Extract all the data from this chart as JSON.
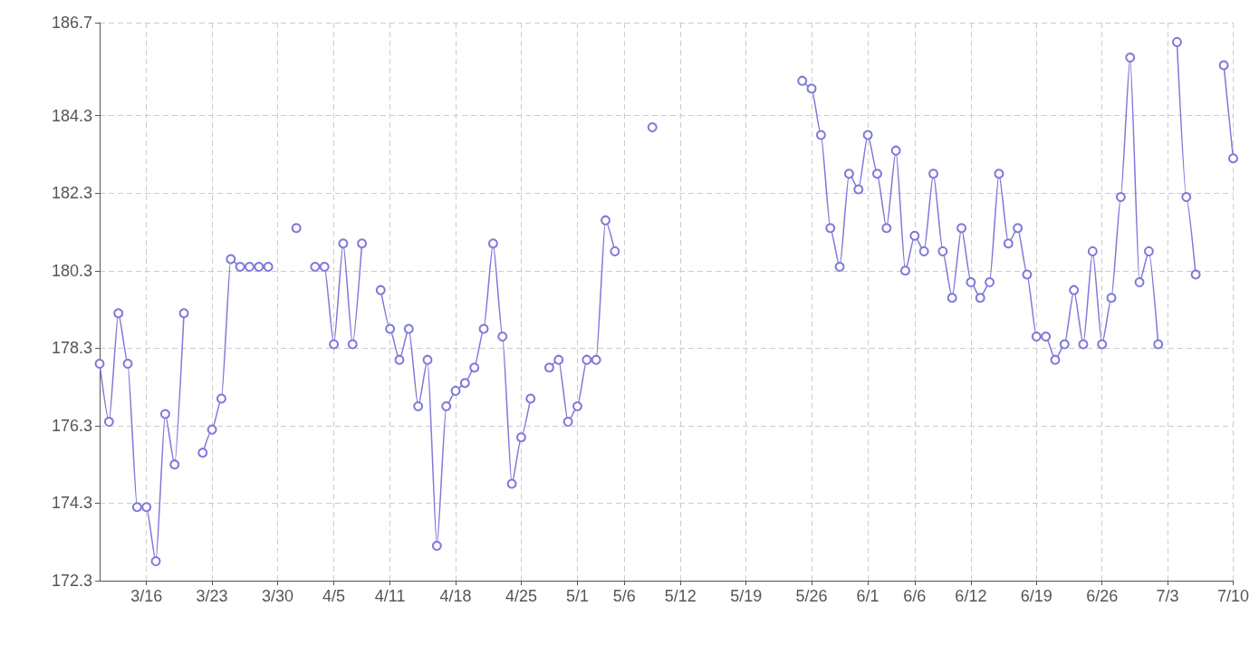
{
  "chart_data": {
    "type": "line",
    "color": "#7e78d8",
    "marker": "circle",
    "grid": true,
    "x": [
      "--03-11",
      "--03-12",
      "--03-13",
      "--03-14",
      "--03-15",
      "--03-16",
      "--03-17",
      "--03-18",
      "--03-19",
      "--03-20",
      "--03-21",
      "--03-22",
      "--03-23",
      "--03-24",
      "--03-25",
      "--03-26",
      "--03-27",
      "--03-28",
      "--03-29",
      "--03-30",
      "--04-01",
      "--04-02",
      "--04-03",
      "--04-04",
      "--04-05",
      "--04-06",
      "--04-07",
      "--04-08",
      "--04-09",
      "--04-10",
      "--04-11",
      "--04-12",
      "--04-13",
      "--04-14",
      "--04-15",
      "--04-16",
      "--04-17",
      "--04-18",
      "--04-19",
      "--04-20",
      "--04-21",
      "--04-22",
      "--04-23",
      "--04-24",
      "--04-25",
      "--04-26",
      "--04-27",
      "--04-28",
      "--04-29",
      "--04-30",
      "--05-01",
      "--05-02",
      "--05-03",
      "--05-04",
      "--05-05",
      "--05-06",
      "--05-09",
      "--05-10",
      "--05-25",
      "--05-26",
      "--05-27",
      "--05-28",
      "--05-29",
      "--05-30",
      "--05-31",
      "--06-01",
      "--06-02",
      "--06-03",
      "--06-04",
      "--06-05",
      "--06-06",
      "--06-07",
      "--06-08",
      "--06-09",
      "--06-10",
      "--06-11",
      "--06-12",
      "--06-13",
      "--06-14",
      "--06-15",
      "--06-16",
      "--06-17",
      "--06-18",
      "--06-19",
      "--06-20",
      "--06-21",
      "--06-22",
      "--06-23",
      "--06-24",
      "--06-25",
      "--06-26",
      "--06-27",
      "--06-28",
      "--06-29",
      "--06-30",
      "--07-01",
      "--07-02",
      "--07-03",
      "--07-04",
      "--07-05",
      "--07-06",
      "--07-07",
      "--07-09",
      "--07-10"
    ],
    "values": [
      177.9,
      176.4,
      179.2,
      177.9,
      174.2,
      174.2,
      172.8,
      176.6,
      175.3,
      179.2,
      null,
      175.6,
      176.2,
      177.0,
      180.6,
      180.4,
      180.4,
      180.4,
      180.4,
      null,
      181.4,
      null,
      180.4,
      180.4,
      178.4,
      181.0,
      178.4,
      181.0,
      null,
      179.8,
      178.8,
      178.0,
      178.8,
      176.8,
      178.0,
      173.2,
      176.8,
      177.2,
      177.4,
      177.8,
      178.8,
      181.0,
      178.6,
      174.8,
      176.0,
      177.0,
      null,
      177.8,
      178.0,
      176.4,
      176.8,
      178.0,
      178.0,
      181.6,
      180.8,
      null,
      184.0,
      null,
      185.2,
      185.0,
      183.8,
      181.4,
      180.4,
      182.8,
      182.4,
      183.8,
      182.8,
      181.4,
      183.4,
      180.3,
      181.2,
      180.8,
      182.8,
      180.8,
      179.6,
      181.4,
      180.0,
      179.6,
      180.0,
      182.8,
      181.0,
      181.4,
      180.2,
      178.6,
      178.6,
      178.0,
      178.4,
      179.8,
      178.4,
      180.8,
      178.4,
      179.6,
      182.2,
      185.8,
      180.0,
      180.8,
      178.4,
      null,
      186.2,
      182.2,
      180.2,
      null,
      185.6,
      183.2
    ],
    "xlim": [
      "--03-11",
      "--07-10"
    ],
    "xticks": [
      {
        "value": "--03-16",
        "label": "3/16"
      },
      {
        "value": "--03-23",
        "label": "3/23"
      },
      {
        "value": "--03-30",
        "label": "3/30"
      },
      {
        "value": "--04-05",
        "label": "4/5"
      },
      {
        "value": "--04-11",
        "label": "4/11"
      },
      {
        "value": "--04-18",
        "label": "4/18"
      },
      {
        "value": "--04-25",
        "label": "4/25"
      },
      {
        "value": "--05-01",
        "label": "5/1"
      },
      {
        "value": "--05-06",
        "label": "5/6"
      },
      {
        "value": "--05-12",
        "label": "5/12"
      },
      {
        "value": "--05-19",
        "label": "5/19"
      },
      {
        "value": "--05-26",
        "label": "5/26"
      },
      {
        "value": "--06-01",
        "label": "6/1"
      },
      {
        "value": "--06-06",
        "label": "6/6"
      },
      {
        "value": "--06-12",
        "label": "6/12"
      },
      {
        "value": "--06-19",
        "label": "6/19"
      },
      {
        "value": "--06-26",
        "label": "6/26"
      },
      {
        "value": "--07-03",
        "label": "7/3"
      },
      {
        "value": "--07-10",
        "label": "7/10"
      }
    ],
    "ylim": [
      172.3,
      186.7
    ],
    "yticks": [
      172.3,
      174.3,
      176.3,
      178.3,
      180.3,
      182.3,
      184.3,
      186.7
    ]
  }
}
